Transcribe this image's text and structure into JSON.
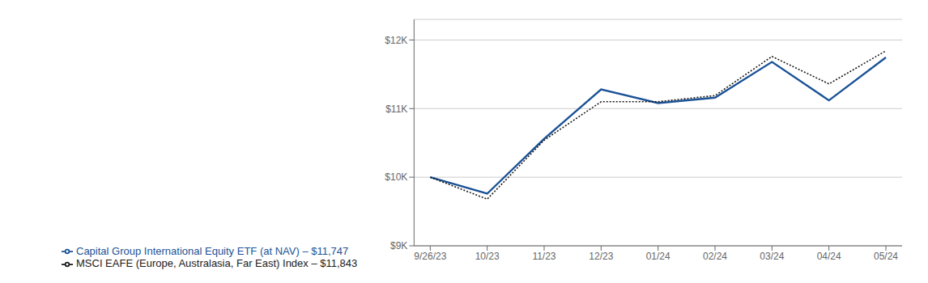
{
  "chart_data": {
    "type": "line",
    "categories": [
      "9/26/23",
      "10/23",
      "11/23",
      "12/23",
      "01/24",
      "02/24",
      "03/24",
      "04/24",
      "05/24"
    ],
    "series": [
      {
        "name": "Capital Group International Equity ETF (at NAV) – $11,747",
        "color": "#1a5296",
        "line_style": "solid",
        "values": [
          10000,
          9760,
          10560,
          11280,
          11080,
          11160,
          11680,
          11120,
          11747
        ]
      },
      {
        "name": "MSCI EAFE (Europe, Australasia, Far East) Index – $11,843",
        "color": "#1a1a1a",
        "line_style": "dotted",
        "values": [
          10000,
          9680,
          10540,
          11100,
          11100,
          11190,
          11760,
          11360,
          11843
        ]
      }
    ],
    "ylim": [
      9000,
      12300
    ],
    "yticks": [
      {
        "value": 9000,
        "label": "$9K"
      },
      {
        "value": 10000,
        "label": "$10K"
      },
      {
        "value": 11000,
        "label": "$11K"
      },
      {
        "value": 12000,
        "label": "$12K"
      }
    ],
    "grid": true,
    "legend": "bottom"
  }
}
